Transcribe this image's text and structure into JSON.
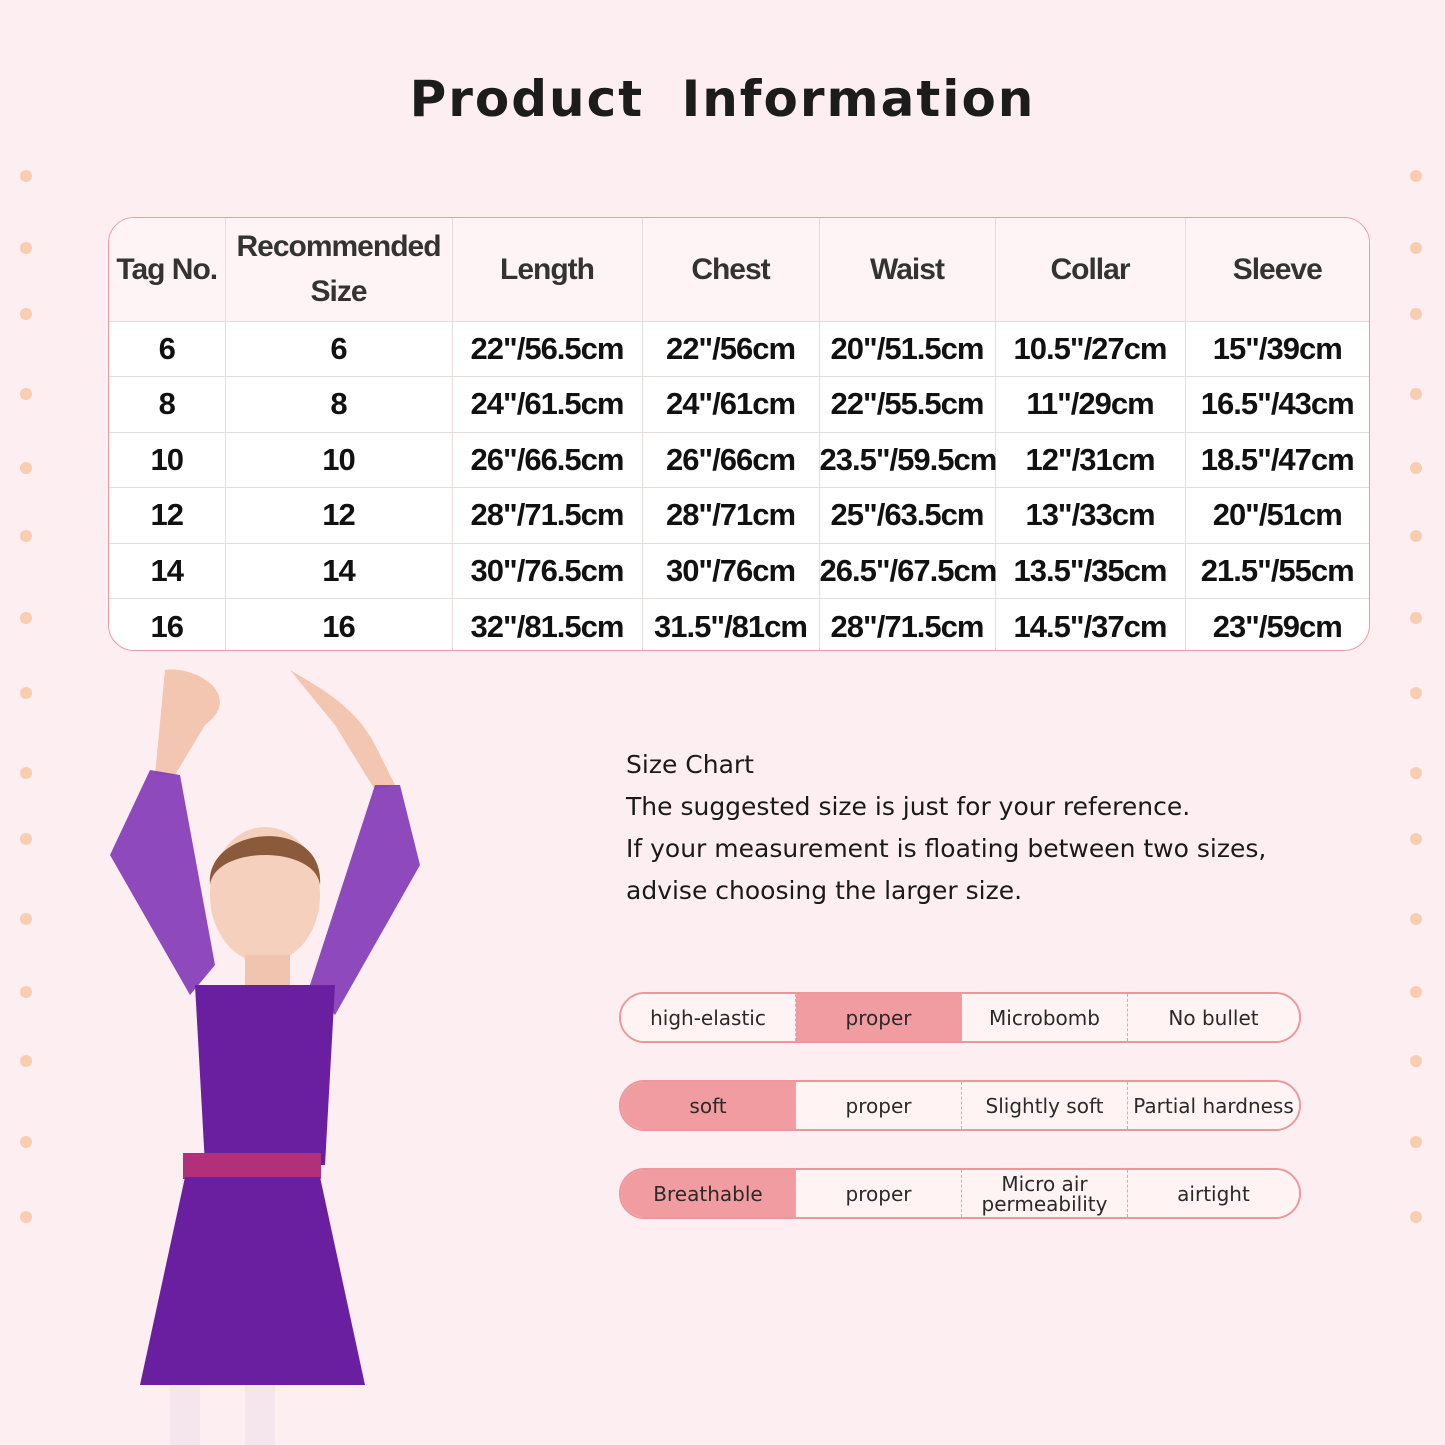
{
  "title": "Product  Information",
  "colors": {
    "background": "#fdeef2",
    "accent": "#f19ca0",
    "border": "#eb979b",
    "dots": "#f8cdb0",
    "dress": "#6a1fa0"
  },
  "table": {
    "headers": [
      "Tag No.",
      "Recommended Size",
      "Length",
      "Chest",
      "Waist",
      "Collar",
      "Sleeve"
    ],
    "rows": [
      [
        "6",
        "6",
        "22\"/56.5cm",
        "22\"/56cm",
        "20\"/51.5cm",
        "10.5\"/27cm",
        "15\"/39cm"
      ],
      [
        "8",
        "8",
        "24\"/61.5cm",
        "24\"/61cm",
        "22\"/55.5cm",
        "11\"/29cm",
        "16.5\"/43cm"
      ],
      [
        "10",
        "10",
        "26\"/66.5cm",
        "26\"/66cm",
        "23.5\"/59.5cm",
        "12\"/31cm",
        "18.5\"/47cm"
      ],
      [
        "12",
        "12",
        "28\"/71.5cm",
        "28\"/71cm",
        "25\"/63.5cm",
        "13\"/33cm",
        "20\"/51cm"
      ],
      [
        "14",
        "14",
        "30\"/76.5cm",
        "30\"/76cm",
        "26.5\"/67.5cm",
        "13.5\"/35cm",
        "21.5\"/55cm"
      ],
      [
        "16",
        "16",
        "32\"/81.5cm",
        "31.5\"/81cm",
        "28\"/71.5cm",
        "14.5\"/37cm",
        "23\"/59cm"
      ]
    ]
  },
  "description": [
    "Size Chart",
    "The suggested size is just for your reference.",
    "If your measurement is floating between two sizes,",
    "advise choosing the larger size."
  ],
  "features": [
    {
      "options": [
        "high-elastic",
        "proper",
        "Microbomb",
        "No bullet"
      ],
      "selected": 1
    },
    {
      "options": [
        "soft",
        "proper",
        "Slightly soft",
        "Partial hardness"
      ],
      "selected": 0
    },
    {
      "options": [
        "Breathable",
        "proper",
        "Micro air permeability",
        "airtight"
      ],
      "selected": 0
    }
  ]
}
